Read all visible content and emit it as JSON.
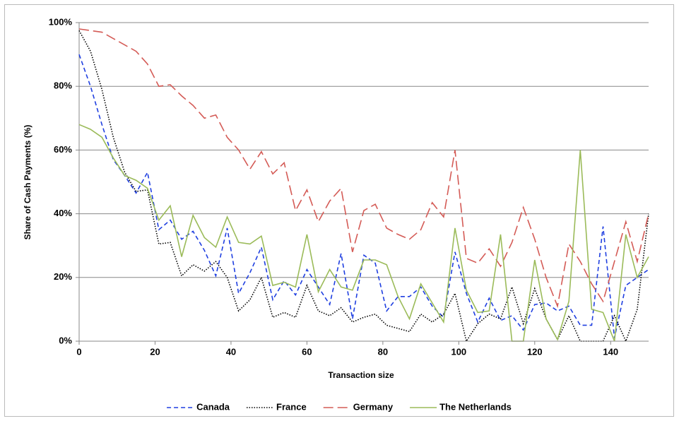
{
  "chart_data": {
    "type": "line",
    "x_label": "Transaction size",
    "y_label": "Share of Cash Payments (%)",
    "x": [
      0,
      3,
      6,
      9,
      12,
      15,
      18,
      21,
      24,
      27,
      30,
      33,
      36,
      39,
      42,
      45,
      48,
      51,
      54,
      57,
      60,
      63,
      66,
      69,
      72,
      75,
      78,
      81,
      84,
      87,
      90,
      93,
      96,
      99,
      102,
      105,
      108,
      111,
      114,
      117,
      120,
      123,
      126,
      129,
      132,
      135,
      138,
      141,
      144,
      147,
      150
    ],
    "series": [
      {
        "name": "Canada",
        "color": "#1f3fe0",
        "dash": "6,4",
        "values": [
          90,
          80,
          68,
          57,
          52,
          46.5,
          53,
          35,
          38,
          32,
          34.5,
          28.5,
          20.5,
          35.5,
          15,
          21.5,
          29.5,
          13,
          19,
          14.5,
          22.5,
          17,
          11.5,
          27.5,
          7,
          27,
          24.5,
          9.5,
          14,
          14,
          17,
          11,
          7.5,
          28,
          15,
          6,
          13.5,
          6.5,
          8,
          3.5,
          11.5,
          12,
          9.5,
          11,
          5,
          5,
          36,
          1,
          17.5,
          20,
          22.5
        ]
      },
      {
        "name": "France",
        "color": "#000000",
        "dash": "1.5,2",
        "values": [
          97.5,
          91,
          79,
          64,
          53,
          47,
          47.5,
          30.5,
          31,
          20.5,
          24,
          22,
          25,
          20,
          9.5,
          13,
          20,
          7.5,
          9,
          7.5,
          17.5,
          9.5,
          8,
          10.5,
          6,
          7.5,
          8.5,
          5,
          4,
          3,
          8.5,
          6,
          8.5,
          15,
          0,
          5.5,
          8.5,
          7,
          17,
          5.5,
          16.5,
          7,
          0.5,
          8,
          0,
          0,
          0,
          8,
          0,
          10,
          40
        ]
      },
      {
        "name": "Germany",
        "color": "#d45b56",
        "dash": "14,6",
        "values": [
          98,
          97.5,
          97,
          95,
          93,
          91,
          87,
          80,
          80.5,
          77,
          74,
          70,
          71,
          64,
          60,
          54,
          59.5,
          52.5,
          56,
          41,
          47.5,
          37.5,
          44,
          48,
          28,
          41,
          43,
          35.5,
          33.5,
          32,
          35,
          43.5,
          39,
          60,
          26,
          24.5,
          29,
          23.5,
          31,
          42,
          32,
          20,
          11,
          30.5,
          25,
          18,
          12.5,
          25,
          37.5,
          25,
          40
        ]
      },
      {
        "name": "The Netherlands",
        "color": "#9bbb59",
        "dash": "none",
        "values": [
          68,
          66.5,
          64,
          57.5,
          52,
          50.5,
          48,
          38,
          42.5,
          26.5,
          39.5,
          32.5,
          29.5,
          39,
          31,
          30.5,
          33,
          17.5,
          18.5,
          17,
          33.5,
          15.5,
          22.5,
          17,
          16,
          25.5,
          25.5,
          24,
          14,
          7,
          18,
          12,
          6,
          35.5,
          16,
          9,
          9.5,
          33.5,
          0,
          0,
          25.5,
          7,
          0.5,
          12.5,
          60,
          10,
          9,
          0,
          33.5,
          20,
          26.5
        ]
      }
    ],
    "xlim": [
      0,
      150
    ],
    "xticks": [
      0,
      20,
      40,
      60,
      80,
      100,
      120,
      140
    ],
    "ylim": [
      0,
      100
    ],
    "yticks": [
      {
        "value": 0,
        "label": "0%"
      },
      {
        "value": 20,
        "label": "20%"
      },
      {
        "value": 40,
        "label": "40%"
      },
      {
        "value": 60,
        "label": "60%"
      },
      {
        "value": 80,
        "label": "80%"
      },
      {
        "value": 100,
        "label": "100%"
      }
    ],
    "grid": true,
    "legend": "bottom"
  }
}
